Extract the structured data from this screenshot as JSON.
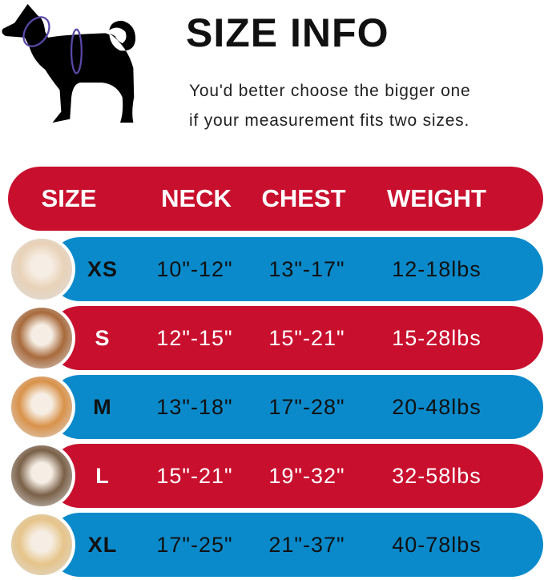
{
  "title": "SIZE INFO",
  "subtitle_lines": [
    "You'd better choose the bigger one",
    "if your measurement fits two sizes."
  ],
  "colors": {
    "red": "#c8102e",
    "blue": "#0a8acb",
    "ring": "#5b48a8"
  },
  "headers": [
    "SIZE",
    "NECK",
    "CHEST",
    "WEIGHT"
  ],
  "rows": [
    {
      "size": "XS",
      "neck": "10\"-12\"",
      "chest": "13\"-17\"",
      "weight": "12-18lbs",
      "color": "blue",
      "avatar": "pomeranian-photo"
    },
    {
      "size": "S",
      "neck": "12\"-15\"",
      "chest": "15\"-21\"",
      "weight": "15-28lbs",
      "color": "red",
      "avatar": "poodle-photo"
    },
    {
      "size": "M",
      "neck": "13\"-18\"",
      "chest": "17\"-28\"",
      "weight": "20-48lbs",
      "color": "blue",
      "avatar": "shiba-photo"
    },
    {
      "size": "L",
      "neck": "15\"-21\"",
      "chest": "19\"-32\"",
      "weight": "32-58lbs",
      "color": "red",
      "avatar": "bulldog-photo"
    },
    {
      "size": "XL",
      "neck": "17\"-25\"",
      "chest": "21\"-37\"",
      "weight": "40-78lbs",
      "color": "blue",
      "avatar": "labrador-photo"
    }
  ]
}
